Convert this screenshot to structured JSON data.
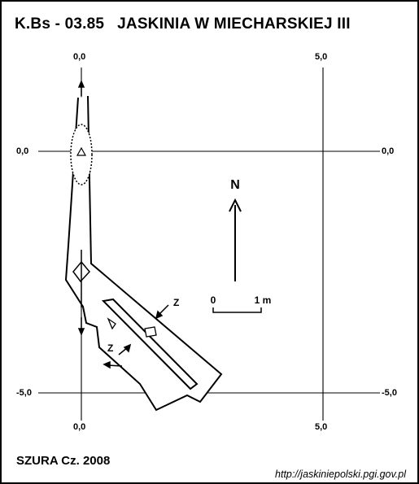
{
  "header": {
    "code": "K.Bs - 03.85",
    "cave_name": "JASKINIA W MIECHARSKIEJ III"
  },
  "grid": {
    "x_top_left": "0,0",
    "x_top_right": "5,0",
    "x_bottom_left": "0,0",
    "x_bottom_right": "5,0",
    "y_left_upper": "0,0",
    "y_right_upper": "0,0",
    "y_left_lower": "-5,0",
    "y_right_lower": "-5,0"
  },
  "north_label": "N",
  "scale": {
    "start": "0",
    "end": "1 m"
  },
  "markers": {
    "z1": "Z",
    "z2": "Z"
  },
  "footer": {
    "author": "SZURA Cz. 2008",
    "url": "http://jaskiniepolski.pgi.gov.pl"
  }
}
